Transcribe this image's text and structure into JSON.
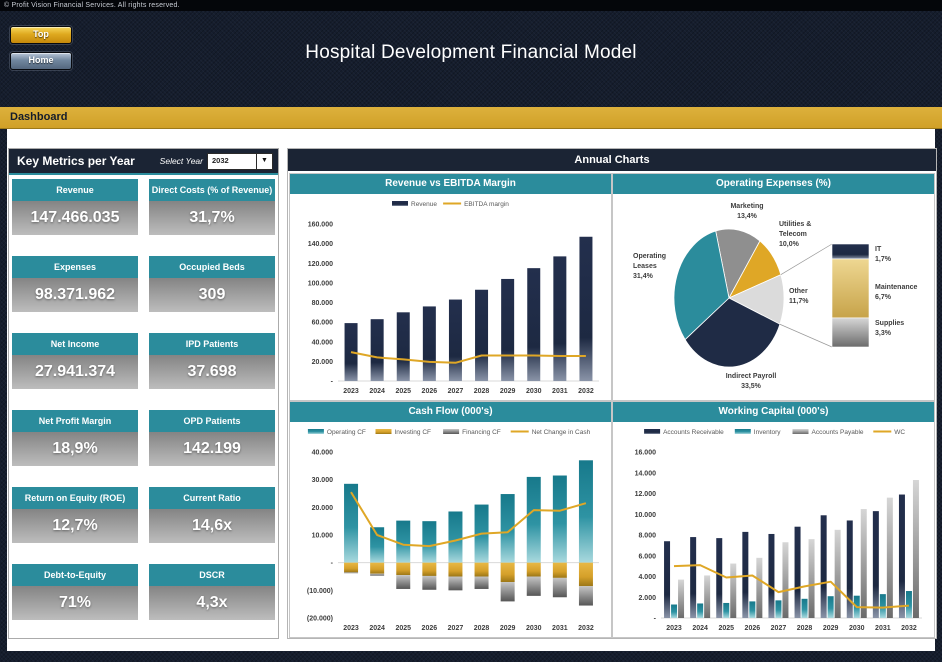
{
  "page": {
    "copyright": "© Profit Vision Financial Services. All rights reserved.",
    "title": "Hospital Development Financial Model",
    "section_label": "Dashboard",
    "top_button": "Top",
    "home_button": "Home"
  },
  "colors": {
    "navy": "#1F2B45",
    "panel_header_navy": "#1B2434",
    "teal": "#2B8C9C",
    "gold": "#DFA726",
    "grey_mid": "#8F8F8F",
    "grey_light": "#DBDBDB",
    "tan": "#D9BA62",
    "page_background": "#151D2D",
    "section_bar_gold": "#D5A52E"
  },
  "metrics_panel": {
    "title": "Key Metrics per Year",
    "select_year_label": "Select Year",
    "selected_year": "2032",
    "tiles": [
      {
        "label": "Revenue",
        "value": "147.466.035"
      },
      {
        "label": "Direct Costs (% of Revenue)",
        "value": "31,7%"
      },
      {
        "label": "Expenses",
        "value": "98.371.962"
      },
      {
        "label": "Occupied Beds",
        "value": "309"
      },
      {
        "label": "Net Income",
        "value": "27.941.374"
      },
      {
        "label": "IPD Patients",
        "value": "37.698"
      },
      {
        "label": "Net Profit Margin",
        "value": "18,9%"
      },
      {
        "label": "OPD Patients",
        "value": "142.199"
      },
      {
        "label": "Return on Equity (ROE)",
        "value": "12,7%"
      },
      {
        "label": "Current Ratio",
        "value": "14,6x"
      },
      {
        "label": "Debt-to-Equity",
        "value": "71%"
      },
      {
        "label": "DSCR",
        "value": "4,3x"
      }
    ]
  },
  "charts_panel": {
    "title": "Annual Charts"
  },
  "chart_data": [
    {
      "type": "bar",
      "title": "Revenue vs EBITDA Margin",
      "categories": [
        "2023",
        "2024",
        "2025",
        "2026",
        "2027",
        "2028",
        "2029",
        "2030",
        "2031",
        "2032"
      ],
      "bar_mode": "single",
      "ylim": [
        0,
        160000
      ],
      "ystep": 20000,
      "series": [
        {
          "name": "Revenue",
          "kind": "bar",
          "paint": "navyBar",
          "values": [
            59000,
            63000,
            70000,
            76000,
            83000,
            93000,
            104000,
            115000,
            127000,
            147000
          ]
        },
        {
          "name": "EBITDA margin",
          "kind": "line",
          "paint": "goldLine",
          "values": [
            29500,
            24000,
            22000,
            19500,
            18500,
            26000,
            26000,
            26000,
            25500,
            25500
          ]
        }
      ]
    },
    {
      "type": "pie",
      "title": "Operating Expenses (%)",
      "slices": [
        {
          "label": "Marketing",
          "value": 13.4,
          "display": "13,4%",
          "color_key": "grey_mid"
        },
        {
          "label": "Utilities & Telecom",
          "value": 10.0,
          "display": "10,0%",
          "color_key": "gold"
        },
        {
          "label": "Other",
          "value": 11.7,
          "display": "11,7%",
          "color_key": "grey_light"
        },
        {
          "label": "Indirect Payroll",
          "value": 33.5,
          "display": "33,5%",
          "color_key": "navy"
        },
        {
          "label": "Operating Leases",
          "value": 31.4,
          "display": "31,4%",
          "color_key": "teal"
        }
      ],
      "breakout": {
        "parent": "Other",
        "segments": [
          {
            "label": "IT",
            "value": 1.7,
            "display": "1,7%",
            "paint": "navyBar"
          },
          {
            "label": "Maintenance",
            "value": 6.7,
            "display": "6,7%",
            "paint": "tanBar"
          },
          {
            "label": "Supplies",
            "value": 3.3,
            "display": "3,3%",
            "paint": "greyAP"
          }
        ]
      }
    },
    {
      "type": "bar",
      "title": "Cash Flow (000's)",
      "categories": [
        "2023",
        "2024",
        "2025",
        "2026",
        "2027",
        "2028",
        "2029",
        "2030",
        "2031",
        "2032"
      ],
      "bar_mode": "stack",
      "ylim": [
        -20000,
        40000
      ],
      "ystep": 10000,
      "series": [
        {
          "name": "Operating CF",
          "kind": "bar",
          "paint": "tealBar",
          "values": [
            28500,
            12800,
            15200,
            15000,
            18500,
            21000,
            24800,
            31000,
            31500,
            37000
          ]
        },
        {
          "name": "Investing CF",
          "kind": "bar",
          "paint": "goldBar",
          "values": [
            -3500,
            -4000,
            -4500,
            -4800,
            -5000,
            -5000,
            -7000,
            -5000,
            -5500,
            -8500
          ]
        },
        {
          "name": "Financing CF",
          "kind": "bar",
          "paint": "greyFin",
          "values": [
            -300,
            -700,
            -5000,
            -5000,
            -5000,
            -4500,
            -7000,
            -7000,
            -7000,
            -7000
          ]
        },
        {
          "name": "Net Change in Cash",
          "kind": "line",
          "paint": "goldLine",
          "values": [
            25500,
            10000,
            6500,
            6000,
            8000,
            10500,
            11000,
            19000,
            18800,
            21500
          ]
        }
      ]
    },
    {
      "type": "bar",
      "title": "Working Capital (000's)",
      "categories": [
        "2023",
        "2024",
        "2025",
        "2026",
        "2027",
        "2028",
        "2029",
        "2030",
        "2031",
        "2032"
      ],
      "bar_mode": "group",
      "ylim": [
        0,
        16000
      ],
      "ystep": 2000,
      "series": [
        {
          "name": "Accounts Receivable",
          "kind": "bar",
          "paint": "navyBar",
          "values": [
            7400,
            7800,
            7700,
            8300,
            8100,
            8800,
            9900,
            9400,
            10300,
            11900
          ]
        },
        {
          "name": "Inventory",
          "kind": "bar",
          "paint": "tealBar",
          "values": [
            1300,
            1400,
            1450,
            1600,
            1700,
            1850,
            2100,
            2150,
            2300,
            2600
          ]
        },
        {
          "name": "Accounts Payable",
          "kind": "bar",
          "paint": "greyAP",
          "values": [
            3700,
            4100,
            5250,
            5800,
            7300,
            7600,
            8500,
            10500,
            11600,
            13300
          ]
        },
        {
          "name": "WC",
          "kind": "line",
          "paint": "goldLine",
          "values": [
            5000,
            5100,
            3900,
            4100,
            2500,
            3050,
            3500,
            1050,
            1000,
            1200
          ]
        }
      ]
    }
  ]
}
